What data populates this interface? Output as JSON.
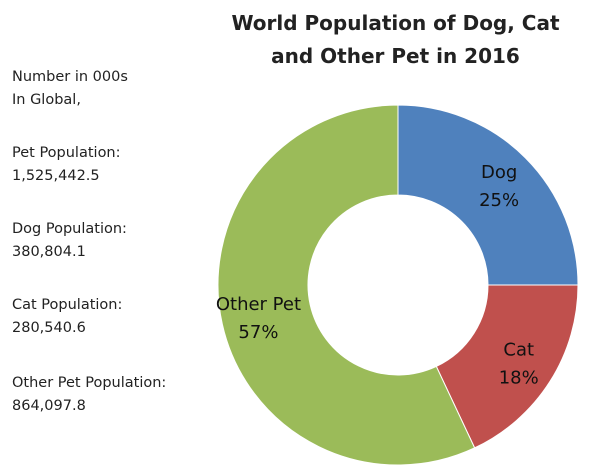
{
  "chart_data": {
    "type": "pie",
    "title_lines": [
      "World Population of Dog, Cat",
      "and Other Pet in 2016"
    ],
    "categories": [
      "Dog",
      "Cat",
      "Other Pet"
    ],
    "values": [
      25,
      18,
      57
    ],
    "value_labels": [
      "25%",
      "18%",
      "57%"
    ],
    "colors": [
      "#4f81bd",
      "#c0504d",
      "#9bbb59"
    ]
  },
  "info": {
    "lines": [
      {
        "a": "Number in 000s",
        "b": "In Global,"
      },
      {
        "a": "Pet Population:",
        "b": "1,525,442.5"
      },
      {
        "a": "Dog Population:",
        "b": "380,804.1"
      },
      {
        "a": "Cat Population:",
        "b": "280,540.6"
      },
      {
        "a": "Other Pet Population:",
        "b": "864,097.8"
      }
    ]
  }
}
